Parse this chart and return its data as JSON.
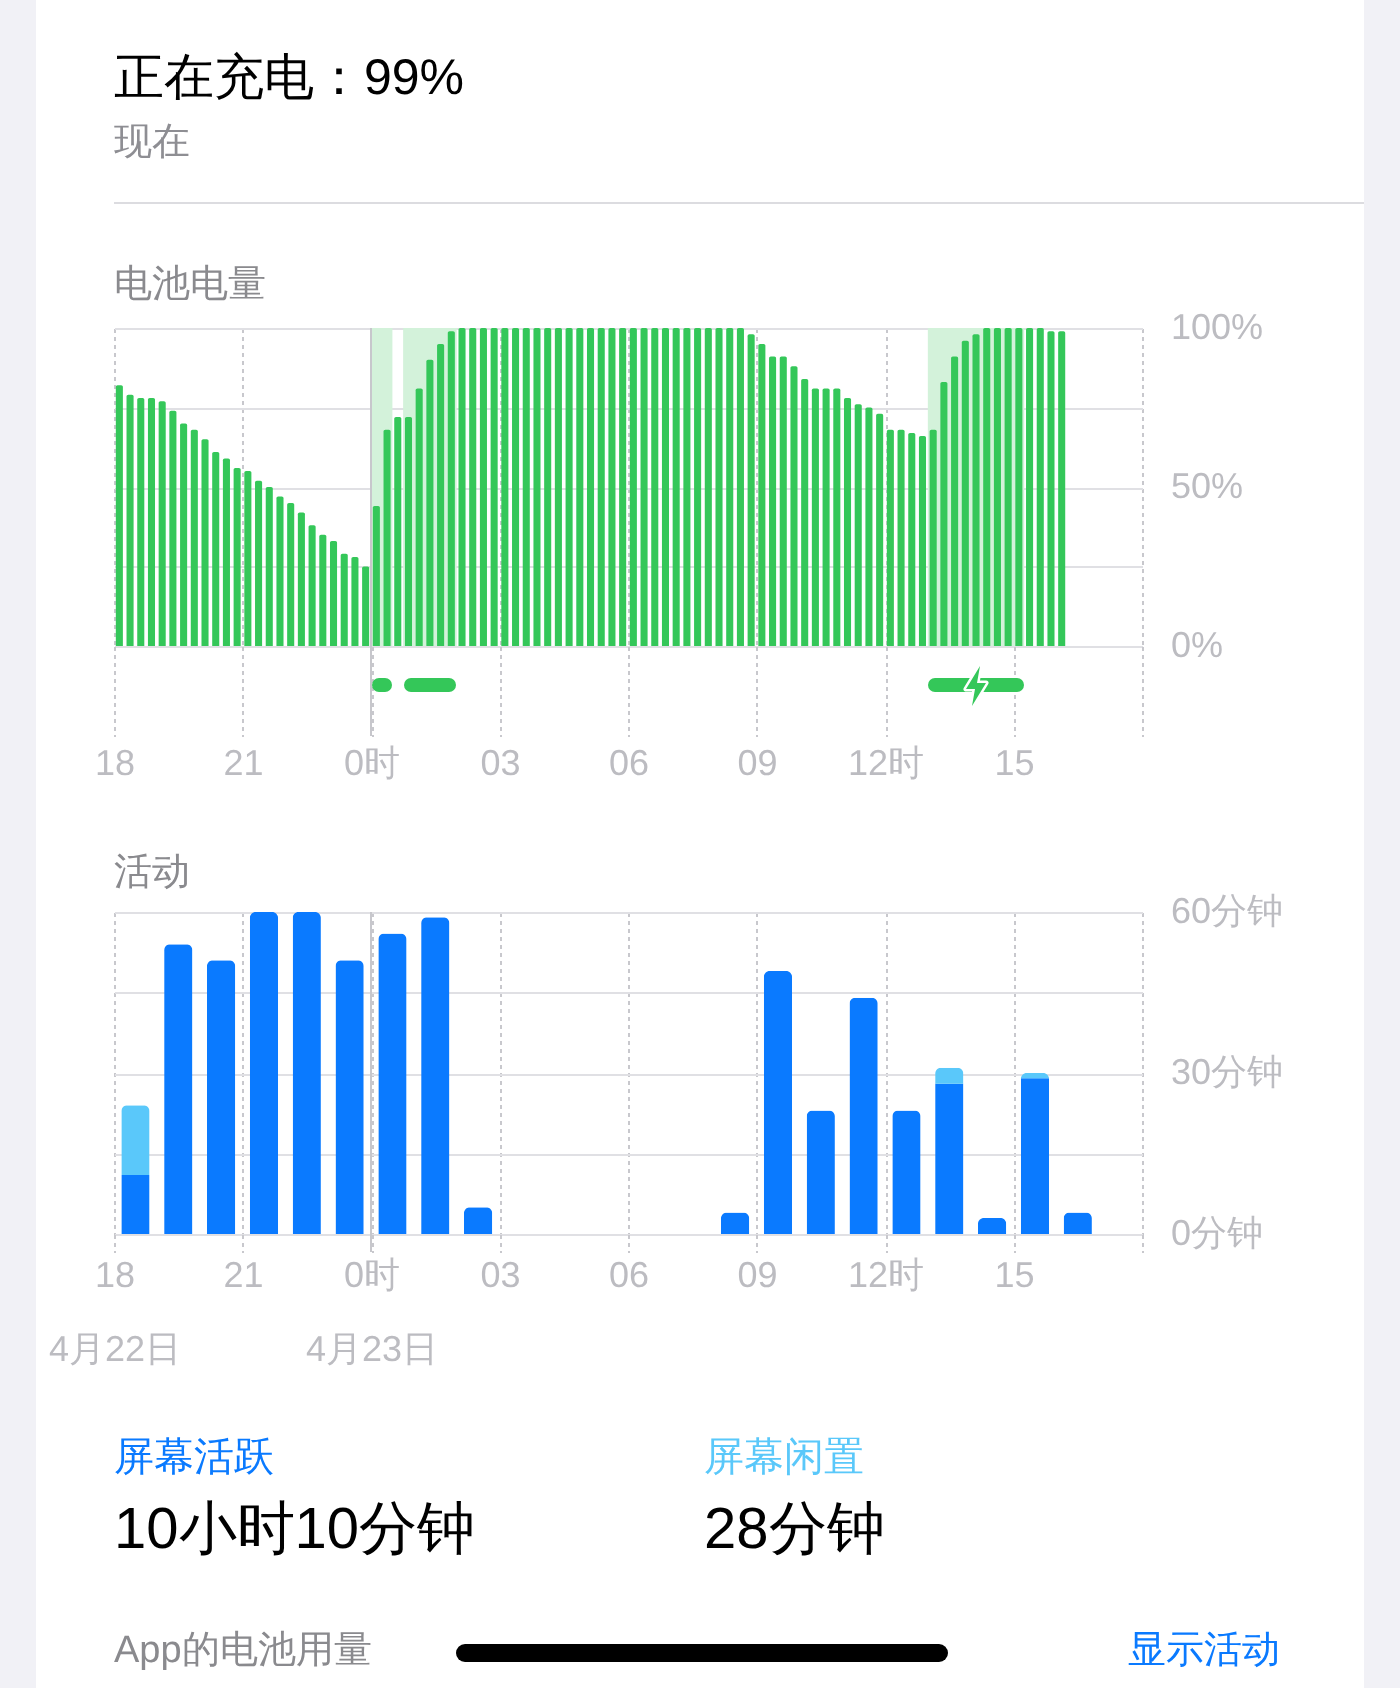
{
  "chart_data": [
    {
      "type": "other",
      "title": "正在充电：99%",
      "subtitle": "现在"
    },
    {
      "type": "bar",
      "title": "电池电量",
      "x": [
        "--04-22T18:07:30",
        "--04-22T18:22:30",
        "--04-22T18:37:30",
        "--04-22T18:52:30",
        "--04-22T19:07:30",
        "--04-22T19:22:30",
        "--04-22T19:37:30",
        "--04-22T19:52:30",
        "--04-22T20:07:30",
        "--04-22T20:22:30",
        "--04-22T20:37:30",
        "--04-22T20:52:30",
        "--04-22T21:07:30",
        "--04-22T21:22:30",
        "--04-22T21:37:30",
        "--04-22T21:52:30",
        "--04-22T22:07:30",
        "--04-22T22:22:30",
        "--04-22T22:37:30",
        "--04-22T22:52:30",
        "--04-22T23:07:30",
        "--04-22T23:22:30",
        "--04-22T23:37:30",
        "--04-22T23:52:30",
        "--04-23T00:07:30",
        "--04-23T00:22:30",
        "--04-23T00:37:30",
        "--04-23T00:52:30",
        "--04-23T01:07:30",
        "--04-23T01:22:30",
        "--04-23T01:37:30",
        "--04-23T01:52:30",
        "--04-23T02:07:30",
        "--04-23T02:22:30",
        "--04-23T02:37:30",
        "--04-23T02:52:30",
        "--04-23T03:07:30",
        "--04-23T03:22:30",
        "--04-23T03:37:30",
        "--04-23T03:52:30",
        "--04-23T04:07:30",
        "--04-23T04:22:30",
        "--04-23T04:37:30",
        "--04-23T04:52:30",
        "--04-23T05:07:30",
        "--04-23T05:22:30",
        "--04-23T05:37:30",
        "--04-23T05:52:30",
        "--04-23T06:07:30",
        "--04-23T06:22:30",
        "--04-23T06:37:30",
        "--04-23T06:52:30",
        "--04-23T07:07:30",
        "--04-23T07:22:30",
        "--04-23T07:37:30",
        "--04-23T07:52:30",
        "--04-23T08:07:30",
        "--04-23T08:22:30",
        "--04-23T08:37:30",
        "--04-23T08:52:30",
        "--04-23T09:07:30",
        "--04-23T09:22:30",
        "--04-23T09:37:30",
        "--04-23T09:52:30",
        "--04-23T10:07:30",
        "--04-23T10:22:30",
        "--04-23T10:37:30",
        "--04-23T10:52:30",
        "--04-23T11:07:30",
        "--04-23T11:22:30",
        "--04-23T11:37:30",
        "--04-23T11:52:30",
        "--04-23T12:07:30",
        "--04-23T12:22:30",
        "--04-23T12:37:30",
        "--04-23T12:52:30",
        "--04-23T13:07:30",
        "--04-23T13:22:30",
        "--04-23T13:37:30",
        "--04-23T13:52:30",
        "--04-23T14:07:30",
        "--04-23T14:22:30",
        "--04-23T14:37:30",
        "--04-23T14:52:30",
        "--04-23T15:07:30",
        "--04-23T15:22:30",
        "--04-23T15:37:30",
        "--04-23T15:52:30",
        "--04-23T16:07:30"
      ],
      "values": [
        82,
        79,
        78,
        78,
        77,
        74,
        70,
        68,
        65,
        61,
        59,
        56,
        55,
        52,
        50,
        47,
        45,
        42,
        38,
        35,
        33,
        29,
        28,
        25,
        44,
        68,
        72,
        72,
        81,
        90,
        95,
        99,
        100,
        100,
        100,
        100,
        100,
        100,
        100,
        100,
        100,
        100,
        100,
        100,
        100,
        100,
        100,
        100,
        100,
        100,
        100,
        100,
        100,
        100,
        100,
        100,
        100,
        100,
        100,
        98,
        95,
        91,
        91,
        88,
        84,
        81,
        81,
        81,
        78,
        76,
        75,
        73,
        68,
        68,
        67,
        66,
        68,
        83,
        91,
        96,
        98,
        100,
        100,
        100,
        100,
        100,
        100,
        99,
        99
      ],
      "color": "#34c759",
      "xlim": [
        "--04-22T18:00",
        "--04-23T18:00"
      ],
      "xticks": [
        {
          "value": "--04-22T18:00",
          "label": "18"
        },
        {
          "value": "--04-22T21:00",
          "label": "21"
        },
        {
          "value": "--04-23T00:00",
          "label": "0时"
        },
        {
          "value": "--04-23T03:00",
          "label": "03"
        },
        {
          "value": "--04-23T06:00",
          "label": "06"
        },
        {
          "value": "--04-23T09:00",
          "label": "09"
        },
        {
          "value": "--04-23T12:00",
          "label": "12时"
        },
        {
          "value": "--04-23T15:00",
          "label": "15"
        },
        {
          "value": "--04-23T18:00",
          "label": null
        }
      ],
      "ylim": [
        0,
        100
      ],
      "yticks": [
        {
          "value": 0,
          "label": "0%"
        },
        {
          "value": 25,
          "label": null
        },
        {
          "value": 50,
          "label": "50%"
        },
        {
          "value": 75,
          "label": null
        },
        {
          "value": 100,
          "label": "100%"
        }
      ],
      "grid": true,
      "bands": [
        {
          "axis": "x",
          "from": "--04-23T00:00",
          "to": "--04-23T00:30",
          "color": "#d3f2da"
        },
        {
          "axis": "x",
          "from": "--04-23T00:45",
          "to": "--04-23T02:00",
          "color": "#d3f2da"
        },
        {
          "axis": "x",
          "from": "--04-23T13:00",
          "to": "--04-23T15:15",
          "color": "#d3f2da"
        }
      ],
      "ref_lines": [
        {
          "axis": "x",
          "value": "--04-23T00:00",
          "color": "#c7c7cc",
          "line_style": "solid"
        }
      ]
    },
    {
      "type": "bar",
      "title": "活动",
      "x": [
        "--04-22T18:30",
        "--04-22T19:30",
        "--04-22T20:30",
        "--04-22T21:30",
        "--04-22T22:30",
        "--04-22T23:30",
        "--04-23T00:30",
        "--04-23T01:30",
        "--04-23T02:30",
        "--04-23T08:30",
        "--04-23T09:30",
        "--04-23T10:30",
        "--04-23T11:30",
        "--04-23T12:30",
        "--04-23T13:30",
        "--04-23T14:30",
        "--04-23T15:30",
        "--04-23T16:30"
      ],
      "stacked": true,
      "series": [
        {
          "name": "屏幕活跃",
          "color": "#0a7aff",
          "values": [
            11,
            54,
            51,
            60,
            60,
            51,
            56,
            59,
            5,
            4,
            49,
            23,
            44,
            23,
            28,
            3,
            29,
            4
          ]
        },
        {
          "name": "屏幕闲置",
          "color": "#5ac8fa",
          "values": [
            13,
            null,
            null,
            null,
            null,
            null,
            null,
            null,
            null,
            null,
            null,
            null,
            null,
            null,
            3,
            null,
            1,
            null
          ]
        }
      ],
      "xlim": [
        "--04-22T18:00",
        "--04-23T18:00"
      ],
      "xticks": [
        {
          "value": "--04-22T18:00",
          "label": "18"
        },
        {
          "value": "--04-22T21:00",
          "label": "21"
        },
        {
          "value": "--04-23T00:00",
          "label": "0时"
        },
        {
          "value": "--04-23T03:00",
          "label": "03"
        },
        {
          "value": "--04-23T06:00",
          "label": "06"
        },
        {
          "value": "--04-23T09:00",
          "label": "09"
        },
        {
          "value": "--04-23T12:00",
          "label": "12时"
        },
        {
          "value": "--04-23T15:00",
          "label": "15"
        },
        {
          "value": "--04-23T18:00",
          "label": null
        }
      ],
      "x2lim": [
        "--04-22T18:00",
        "--04-23T18:00"
      ],
      "x2ticks": [
        {
          "value": "--04-22T18:00",
          "label": "4月22日"
        },
        {
          "value": "--04-23T00:00",
          "label": "4月23日"
        }
      ],
      "ylim": [
        0,
        60
      ],
      "yticks": [
        {
          "value": 0,
          "label": "0分钟"
        },
        {
          "value": 15,
          "label": null
        },
        {
          "value": 30,
          "label": "30分钟"
        },
        {
          "value": 45,
          "label": null
        },
        {
          "value": 60,
          "label": "60分钟"
        }
      ],
      "grid": true,
      "legend": "bottom",
      "ref_lines": [
        {
          "axis": "x",
          "value": "--04-23T00:00",
          "color": "#c7c7cc",
          "line_style": "solid"
        }
      ],
      "annotations": [
        "10小时10分钟",
        "28分钟"
      ]
    },
    {
      "type": "other",
      "title": "App的电池用量",
      "annotations": [
        "显示活动"
      ]
    }
  ]
}
